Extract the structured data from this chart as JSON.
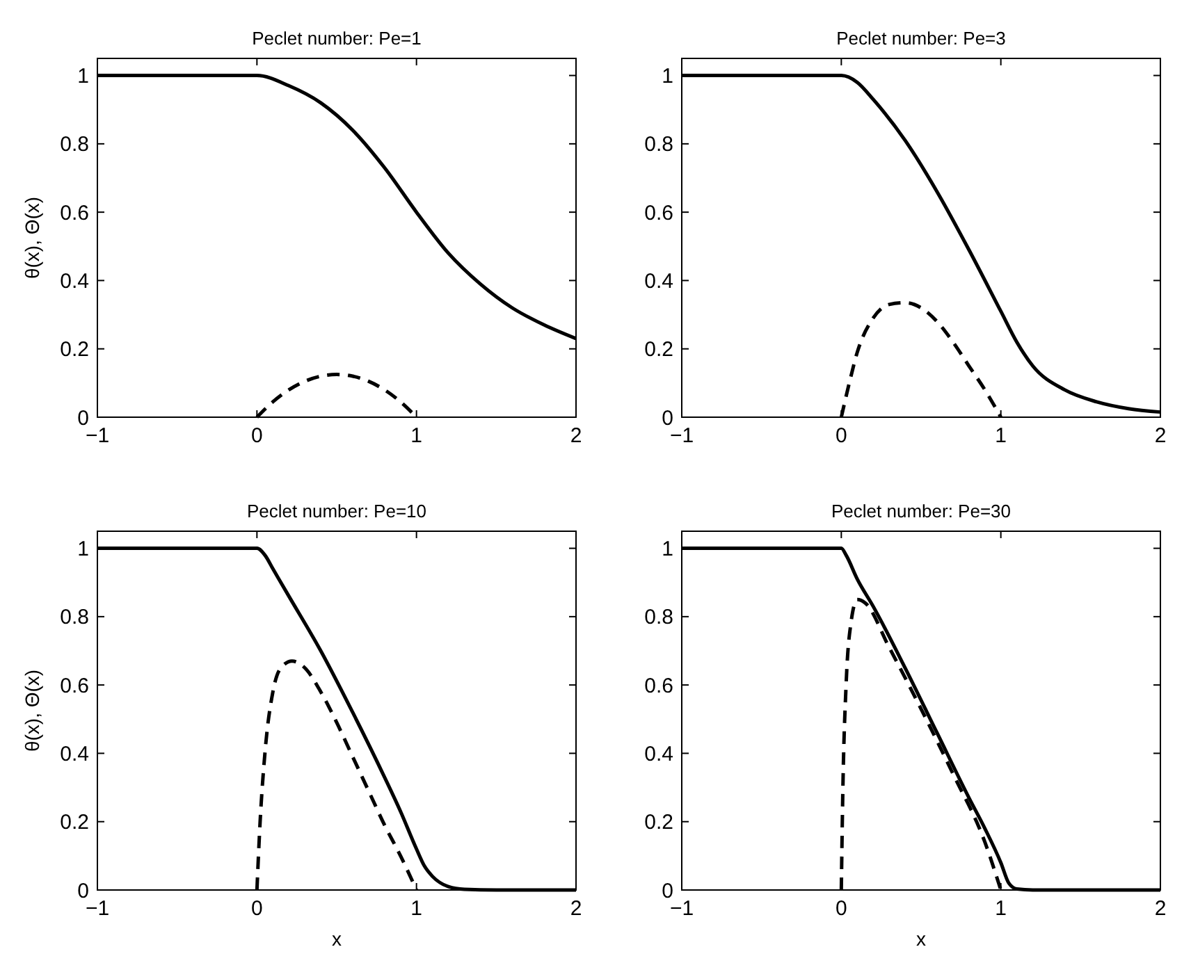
{
  "chart_data": [
    {
      "type": "line",
      "title": "Peclet number: Pe=1",
      "ylabel": "θ(x), Θ(x)",
      "xlim": [
        -1,
        2
      ],
      "xticks": [
        -1,
        0,
        1,
        2
      ],
      "ylim": [
        0,
        1.05
      ],
      "yticks": [
        0,
        0.2,
        0.4,
        0.6,
        0.8,
        1
      ],
      "grid": false,
      "series": [
        {
          "color": "#000000",
          "line_style": "solid",
          "x": [
            -1,
            0,
            0.2,
            0.4,
            0.6,
            0.8,
            1.0,
            1.2,
            1.4,
            1.6,
            1.8,
            2.0
          ],
          "values": [
            1,
            1,
            0.97,
            0.92,
            0.84,
            0.73,
            0.6,
            0.48,
            0.39,
            0.32,
            0.27,
            0.23
          ]
        },
        {
          "color": "#000000",
          "line_style": "dashed",
          "x": [
            0,
            0.1,
            0.2,
            0.3,
            0.4,
            0.5,
            0.6,
            0.7,
            0.8,
            0.9,
            1.0
          ],
          "values": [
            0,
            0.045,
            0.08,
            0.105,
            0.12,
            0.125,
            0.12,
            0.105,
            0.08,
            0.045,
            0
          ]
        }
      ]
    },
    {
      "type": "line",
      "title": "Peclet number: Pe=3",
      "xlim": [
        -1,
        2
      ],
      "xticks": [
        -1,
        0,
        1,
        2
      ],
      "ylim": [
        0,
        1.05
      ],
      "yticks": [
        0,
        0.2,
        0.4,
        0.6,
        0.8,
        1
      ],
      "grid": false,
      "series": [
        {
          "color": "#000000",
          "line_style": "solid",
          "x": [
            -1,
            0,
            0.1,
            0.2,
            0.4,
            0.6,
            0.8,
            1.0,
            1.1,
            1.2,
            1.4,
            1.6,
            1.8,
            2.0
          ],
          "values": [
            1,
            1,
            0.98,
            0.93,
            0.81,
            0.66,
            0.49,
            0.31,
            0.22,
            0.15,
            0.08,
            0.045,
            0.025,
            0.015
          ]
        },
        {
          "color": "#000000",
          "line_style": "dashed",
          "x": [
            0,
            0.05,
            0.1,
            0.2,
            0.3,
            0.4,
            0.5,
            0.6,
            0.7,
            0.8,
            0.9,
            1.0
          ],
          "values": [
            0,
            0.1,
            0.19,
            0.29,
            0.33,
            0.335,
            0.32,
            0.28,
            0.22,
            0.15,
            0.08,
            0
          ]
        }
      ]
    },
    {
      "type": "line",
      "title": "Peclet number: Pe=10",
      "xlabel": "x",
      "ylabel": "θ(x), Θ(x)",
      "xlim": [
        -1,
        2
      ],
      "xticks": [
        -1,
        0,
        1,
        2
      ],
      "ylim": [
        0,
        1.05
      ],
      "yticks": [
        0,
        0.2,
        0.4,
        0.6,
        0.8,
        1
      ],
      "grid": false,
      "series": [
        {
          "color": "#000000",
          "line_style": "solid",
          "x": [
            -1,
            0,
            0.05,
            0.1,
            0.2,
            0.4,
            0.6,
            0.8,
            0.9,
            1.0,
            1.05,
            1.1,
            1.2,
            1.3,
            1.5,
            2.0
          ],
          "values": [
            1,
            1,
            0.98,
            0.94,
            0.86,
            0.7,
            0.52,
            0.33,
            0.23,
            0.12,
            0.07,
            0.04,
            0.01,
            0.002,
            0,
            0
          ]
        },
        {
          "color": "#000000",
          "line_style": "dashed",
          "x": [
            0,
            0.02,
            0.05,
            0.1,
            0.15,
            0.22,
            0.3,
            0.4,
            0.5,
            0.6,
            0.7,
            0.8,
            0.9,
            1.0
          ],
          "values": [
            0,
            0.2,
            0.4,
            0.58,
            0.65,
            0.67,
            0.65,
            0.58,
            0.49,
            0.39,
            0.29,
            0.19,
            0.1,
            0
          ]
        }
      ]
    },
    {
      "type": "line",
      "title": "Peclet number: Pe=30",
      "xlabel": "x",
      "xlim": [
        -1,
        2
      ],
      "xticks": [
        -1,
        0,
        1,
        2
      ],
      "ylim": [
        0,
        1.05
      ],
      "yticks": [
        0,
        0.2,
        0.4,
        0.6,
        0.8,
        1
      ],
      "grid": false,
      "series": [
        {
          "color": "#000000",
          "line_style": "solid",
          "x": [
            -1,
            0,
            0.03,
            0.1,
            0.2,
            0.4,
            0.6,
            0.8,
            0.9,
            1.0,
            1.05,
            1.1,
            1.2,
            2.0
          ],
          "values": [
            1,
            1,
            0.98,
            0.91,
            0.83,
            0.65,
            0.46,
            0.27,
            0.18,
            0.08,
            0.02,
            0.003,
            0,
            0
          ]
        },
        {
          "color": "#000000",
          "line_style": "dashed",
          "x": [
            0,
            0.01,
            0.03,
            0.06,
            0.1,
            0.15,
            0.3,
            0.5,
            0.7,
            0.9,
            1.0
          ],
          "values": [
            0,
            0.3,
            0.6,
            0.78,
            0.85,
            0.84,
            0.71,
            0.53,
            0.34,
            0.14,
            0
          ]
        }
      ]
    }
  ]
}
